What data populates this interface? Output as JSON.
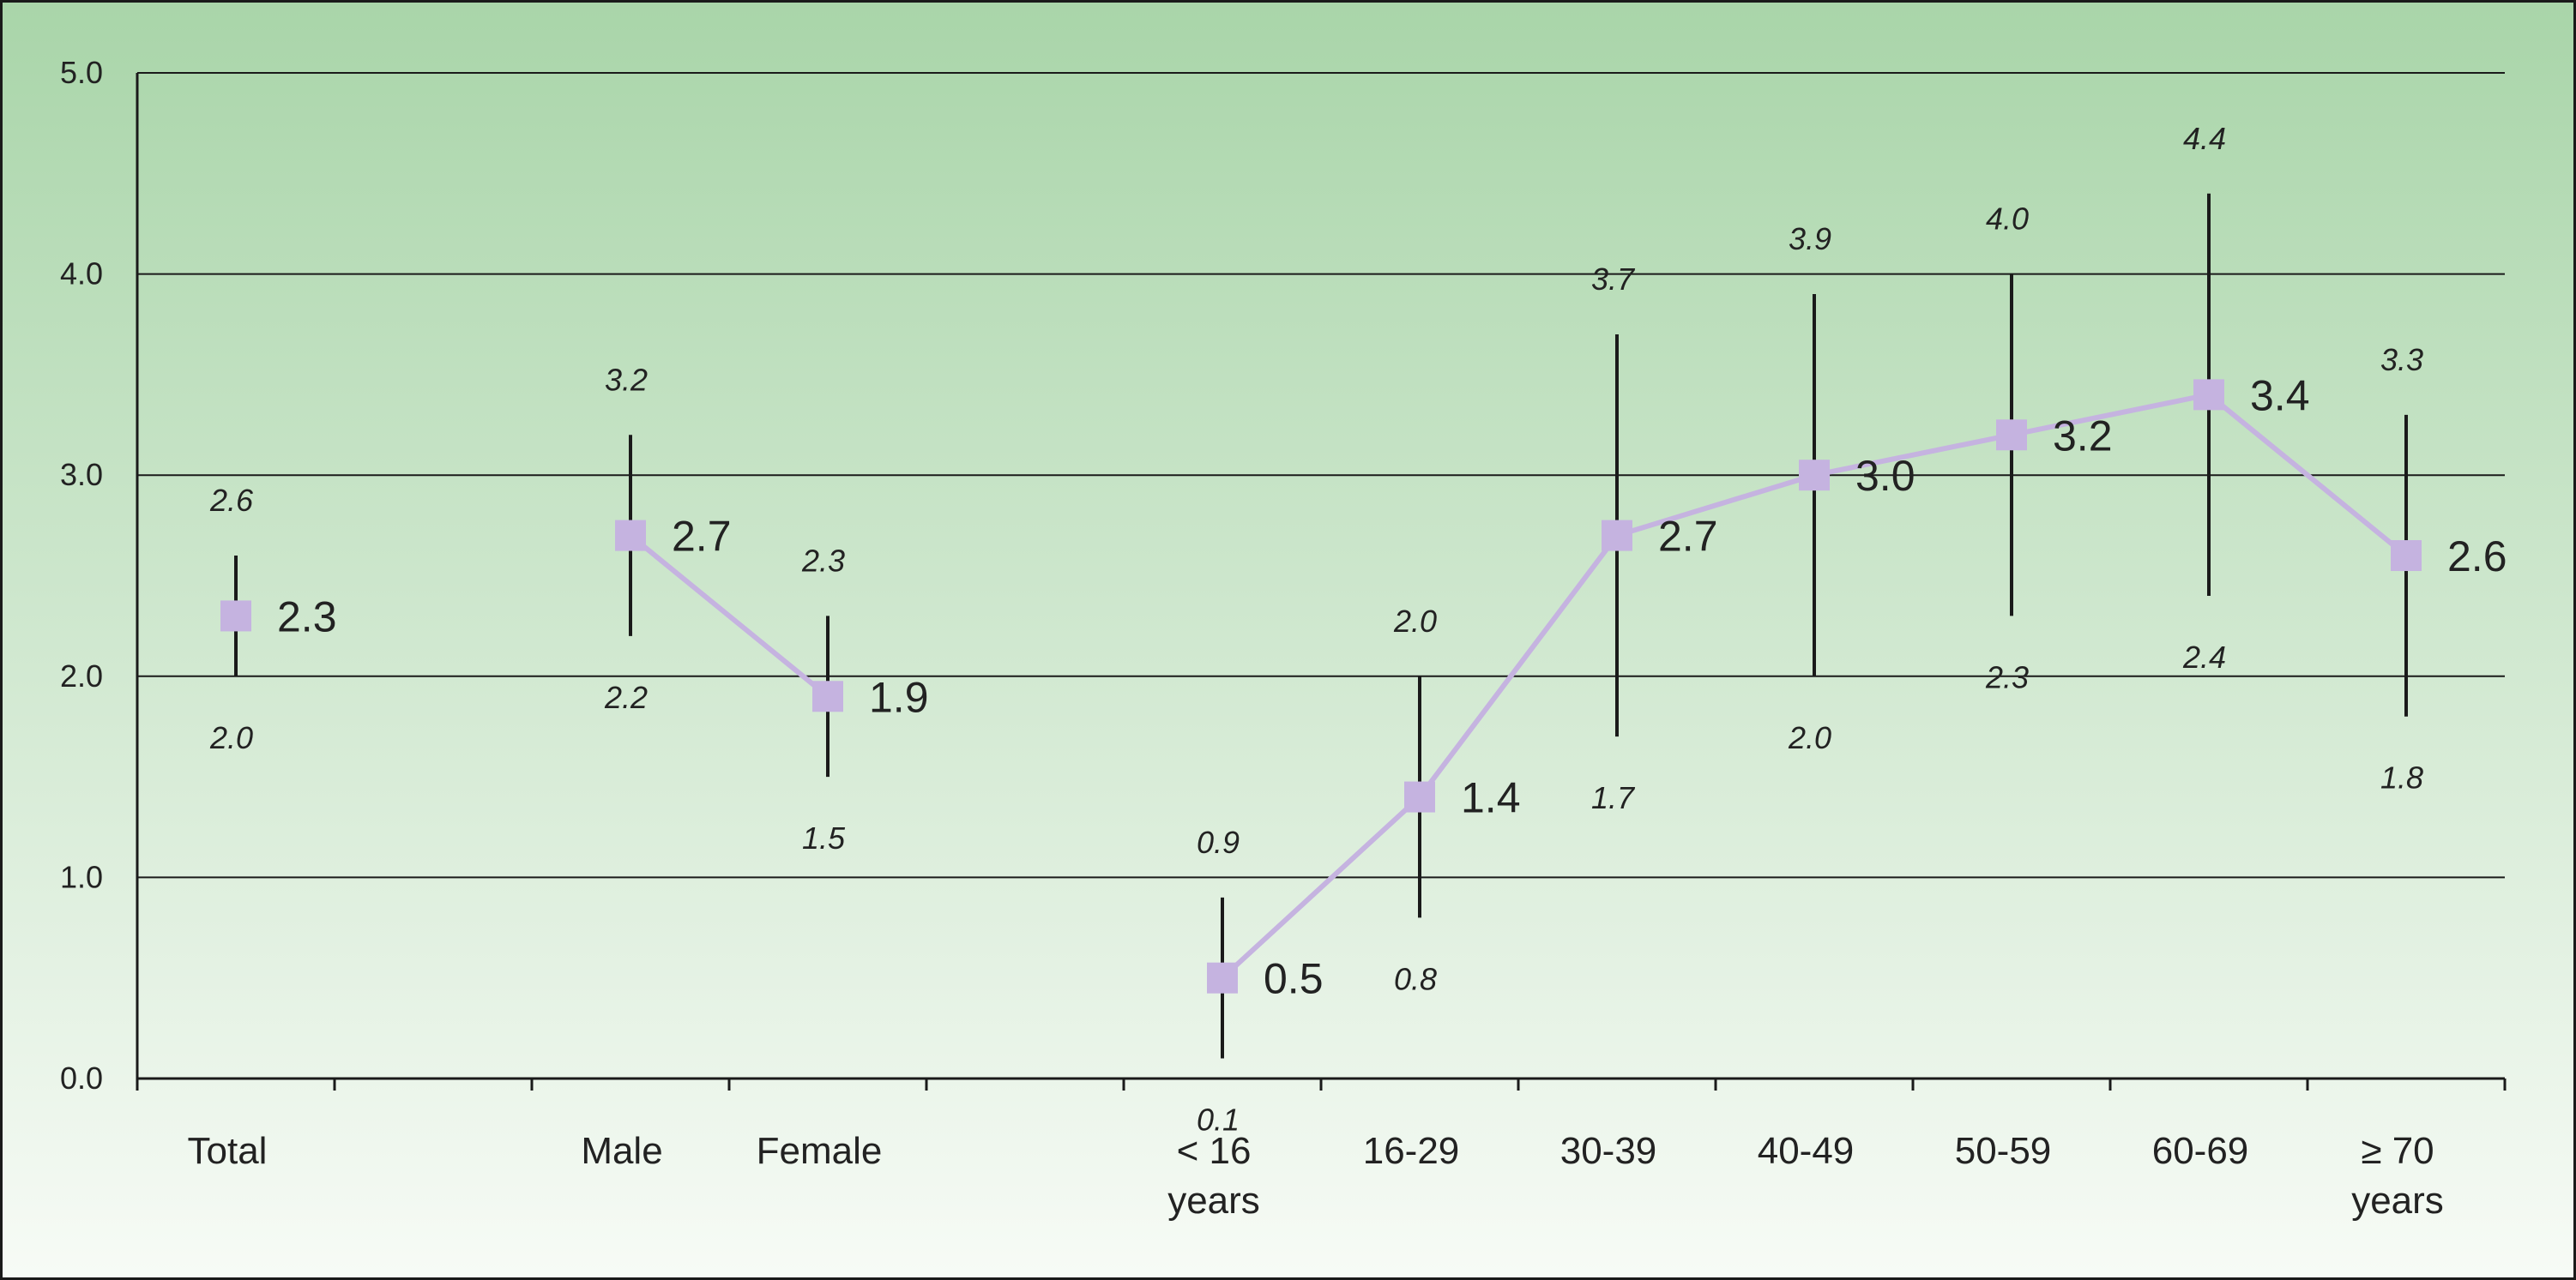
{
  "chart_data": {
    "type": "line",
    "title": "",
    "xlabel": "",
    "ylabel": "",
    "ylim": [
      0,
      5
    ],
    "yticks": [
      "0.0",
      "1.0",
      "2.0",
      "3.0",
      "4.0",
      "5.0"
    ],
    "grid": true,
    "categories": [
      [
        "Total"
      ],
      [
        ""
      ],
      [
        "Male"
      ],
      [
        "Female"
      ],
      [
        ""
      ],
      [
        "< 16",
        "years"
      ],
      [
        "16-29"
      ],
      [
        "30-39"
      ],
      [
        "40-49"
      ],
      [
        "50-59"
      ],
      [
        "60-69"
      ],
      [
        "≥ 70",
        "years"
      ]
    ],
    "series": [
      {
        "values": [
          2.3,
          null,
          2.7,
          1.9,
          null,
          0.5,
          1.4,
          2.7,
          3.0,
          3.2,
          3.4,
          2.6
        ],
        "value_labels": [
          "2.3",
          "",
          "2.7",
          "1.9",
          "",
          "0.5",
          "1.4",
          "2.7",
          "3.0",
          "3.2",
          "3.4",
          "2.6"
        ],
        "upper": [
          2.6,
          null,
          3.2,
          2.3,
          null,
          0.9,
          2.0,
          3.7,
          3.9,
          4.0,
          4.4,
          3.3
        ],
        "upper_labels": [
          "2.6",
          "",
          "3.2",
          "2.3",
          "",
          "0.9",
          "2.0",
          "3.7",
          "3.9",
          "4.0",
          "4.4",
          "3.3"
        ],
        "lower": [
          2.0,
          null,
          2.2,
          1.5,
          null,
          0.1,
          0.8,
          1.7,
          2.0,
          2.3,
          2.4,
          1.8
        ],
        "lower_labels": [
          "2.0",
          "",
          "2.2",
          "1.5",
          "",
          "0.1",
          "0.8",
          "1.7",
          "2.0",
          "2.3",
          "2.4",
          "1.8"
        ]
      }
    ],
    "connected_segments": [
      [
        2,
        3
      ],
      [
        5,
        11
      ]
    ]
  },
  "colors": {
    "background_top": "#a9d5a9",
    "background_bottom": "#f7fbf6",
    "marker": "#c5b3e0",
    "line": "#c5b3e0",
    "error_bar": "#1a1a1a",
    "grid": "#1a1a1a",
    "text": "#222222"
  }
}
